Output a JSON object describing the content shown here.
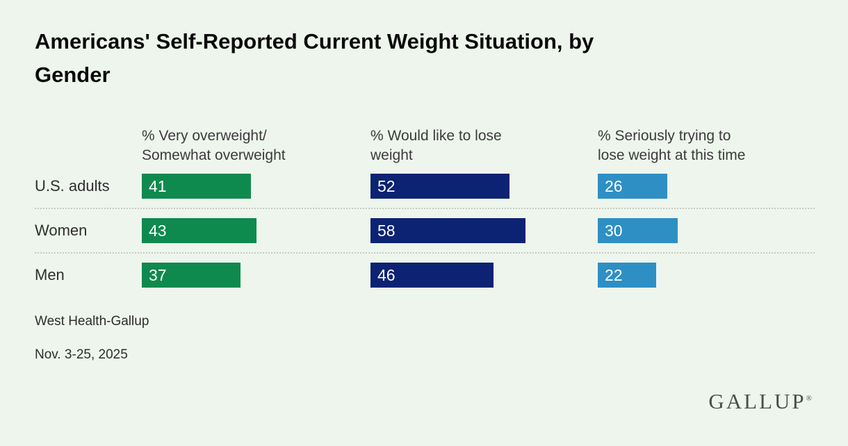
{
  "title": "Americans' Self-Reported Current Weight Situation, by\nGender",
  "columns": [
    {
      "label": "% Very overweight/\nSomewhat overweight"
    },
    {
      "label": "% Would like to lose\nweight"
    },
    {
      "label": "% Seriously trying to\nlose weight at this time"
    }
  ],
  "footer": {
    "source": "West Health-Gallup",
    "dates": "Nov. 3-25, 2025"
  },
  "logo": {
    "text": "GALLUP",
    "reg_mark": "®"
  },
  "colors": {
    "background": "#eef5ed",
    "green": "#0f8a4e",
    "navy": "#0c2373",
    "blue": "#2e8fc5",
    "separator": "#c4cac2"
  },
  "chart_data": {
    "type": "bar",
    "orientation": "horizontal",
    "title": "Americans' Self-Reported Current Weight Situation, by Gender",
    "categories": [
      "U.S. adults",
      "Women",
      "Men"
    ],
    "series": [
      {
        "name": "% Very overweight/Somewhat overweight",
        "values": [
          41,
          43,
          37
        ],
        "color": "#0f8a4e"
      },
      {
        "name": "% Would like to lose weight",
        "values": [
          52,
          58,
          46
        ],
        "color": "#0c2373"
      },
      {
        "name": "% Seriously trying to lose weight at this time",
        "values": [
          26,
          30,
          22
        ],
        "color": "#2e8fc5"
      }
    ],
    "unit": "%",
    "value_labels_shown": true,
    "grid": false,
    "legend_position": "column-headers",
    "source": "West Health-Gallup",
    "date_range": "Nov. 3-25, 2025"
  }
}
